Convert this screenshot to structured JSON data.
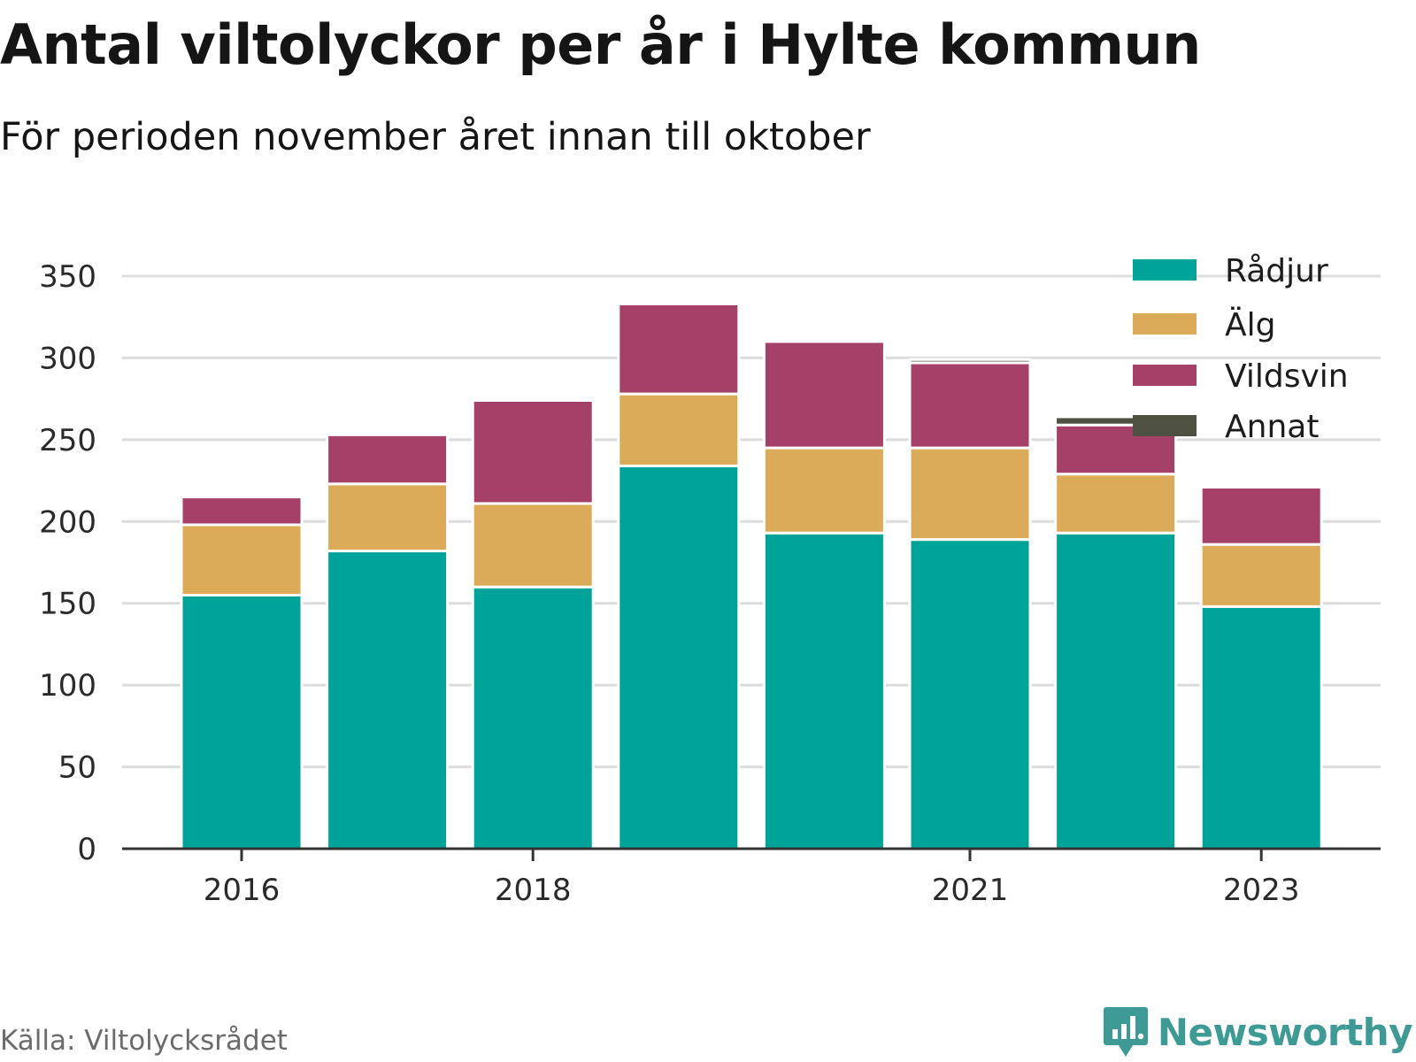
{
  "title": "Antal viltolyckor per år i Hylte kommun",
  "subtitle": "För perioden november året innan till oktober",
  "source": "Källa: Viltolycksrådet",
  "brand": "Newsworthy",
  "colors": {
    "Rådjur": "#00a398",
    "Älg": "#dbab5a",
    "Vildsvin": "#a54168",
    "Annat": "#4e5141",
    "brand": "#3d9a94"
  },
  "chart_data": {
    "type": "bar",
    "stacked": true,
    "categories": [
      "2016",
      "2017",
      "2018",
      "2019",
      "2020",
      "2021",
      "2022",
      "2023"
    ],
    "x_tick_labels": [
      "2016",
      "",
      "2018",
      "",
      "",
      "2021",
      "",
      "2023"
    ],
    "series": [
      {
        "name": "Rådjur",
        "values": [
          155,
          182,
          160,
          234,
          193,
          189,
          193,
          148
        ]
      },
      {
        "name": "Älg",
        "values": [
          43,
          41,
          51,
          44,
          52,
          56,
          36,
          38
        ]
      },
      {
        "name": "Vildsvin",
        "values": [
          17,
          30,
          63,
          55,
          65,
          52,
          30,
          35
        ]
      },
      {
        "name": "Annat",
        "values": [
          0,
          0,
          0,
          0,
          0,
          2,
          5,
          0
        ]
      }
    ],
    "ylim": [
      0,
      350
    ],
    "y_ticks": [
      0,
      50,
      100,
      150,
      200,
      250,
      300,
      350
    ],
    "grid": true,
    "legend_position": "top-right"
  }
}
